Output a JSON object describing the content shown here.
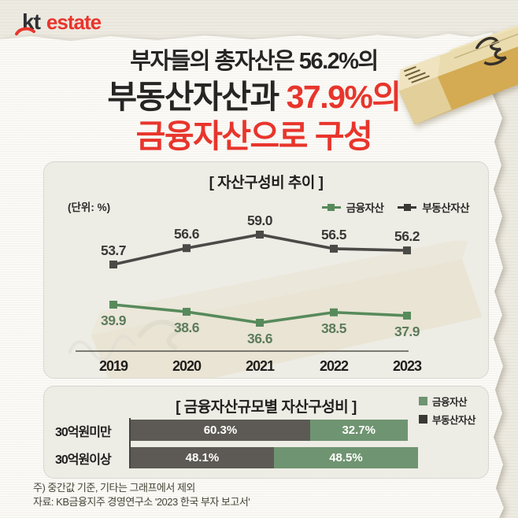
{
  "logo": {
    "kt": "kt",
    "estate": "estate"
  },
  "headline": {
    "line1": "부자들의 총자산은 56.2%의",
    "line2_dark": "부동산자산과 ",
    "line2_red": "37.9%의",
    "line3_red": "금융자산으로 구성"
  },
  "colors": {
    "accent_red": "#e8352c",
    "line_green": "#578a5b",
    "line_dark": "#4c4a47",
    "bar_green": "#6f9471",
    "bar_dark": "#5d5a55"
  },
  "chart_data": [
    {
      "type": "line",
      "title": "[ 자산구성비 추이 ]",
      "unit_label": "(단위: %)",
      "categories": [
        "2019",
        "2020",
        "2021",
        "2022",
        "2023"
      ],
      "series": [
        {
          "name": "금융자산",
          "color": "#578a5b",
          "values": [
            39.9,
            38.6,
            36.6,
            38.5,
            37.9
          ]
        },
        {
          "name": "부동산자산",
          "color": "#4c4a47",
          "values": [
            53.7,
            56.6,
            59.0,
            56.5,
            56.2
          ]
        }
      ],
      "legend": [
        {
          "label": "금융자산",
          "color": "#578a5b"
        },
        {
          "label": "부동산자산",
          "color": "#3a3936"
        }
      ],
      "legend_position": "top-right",
      "grid": false,
      "xlabel": "",
      "ylabel": ""
    },
    {
      "type": "bar",
      "orientation": "horizontal-stacked",
      "title": "[ 금융자산규모별 자산구성비 ]",
      "categories": [
        "30억원미만",
        "30억원이상"
      ],
      "series": [
        {
          "name": "부동산자산",
          "color": "#5d5a55",
          "values": [
            60.3,
            48.1
          ]
        },
        {
          "name": "금융자산",
          "color": "#6f9471",
          "values": [
            32.7,
            48.5
          ]
        }
      ],
      "legend": [
        {
          "label": "금융자산",
          "color": "#6f9471"
        },
        {
          "label": "부동산자산",
          "color": "#3a3936"
        }
      ],
      "value_suffix": "%",
      "legend_position": "top-right"
    }
  ],
  "footer": {
    "note": "주) 중간값 기준, 기타는 그래프에서 제외",
    "source": "자료: KB금융지주 경영연구소 '2023 한국 부자 보고서'"
  }
}
